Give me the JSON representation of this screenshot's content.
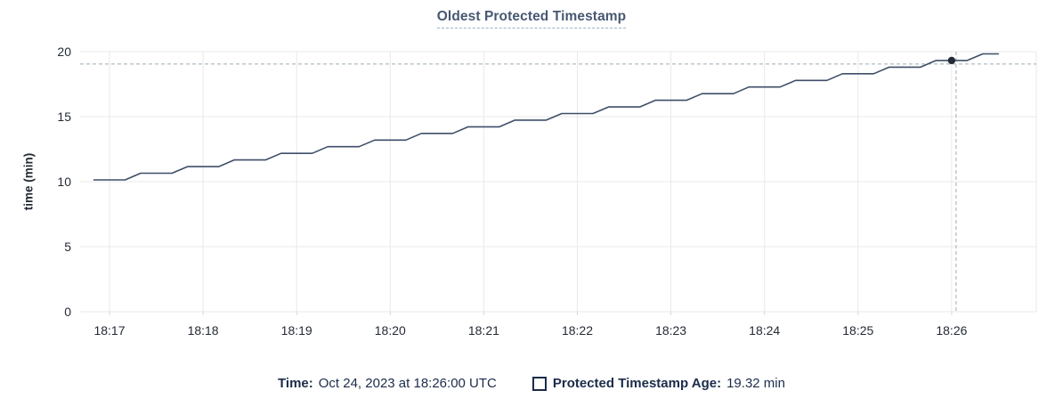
{
  "title": "Oldest Protected Timestamp",
  "tooltip": {
    "time_label": "Time:",
    "time_value": "Oct 24, 2023 at 18:26:00 UTC",
    "series_label": "Protected Timestamp Age:",
    "series_value": "19.32 min"
  },
  "colors": {
    "title": "#475872",
    "title_underline": "#9fb0c5",
    "axis_text": "#242a35",
    "legend_text": "#1c2c4a",
    "line": "#3f4e68",
    "point": "#242a35",
    "grid": "#e9e9e9",
    "tick": "#d8d8d8",
    "crosshair": "#9aacb6",
    "background": "#ffffff"
  },
  "chart_data": {
    "type": "line",
    "title": "Oldest Protected Timestamp",
    "xlabel": "",
    "ylabel": "time (min)",
    "ylim": [
      0,
      20
    ],
    "y_ticks": [
      0,
      5,
      10,
      15,
      20
    ],
    "x_ticks": [
      "18:17",
      "18:18",
      "18:19",
      "18:20",
      "18:21",
      "18:22",
      "18:23",
      "18:24",
      "18:25",
      "18:26"
    ],
    "x_tick_interval_sec": 60,
    "grid": true,
    "legend_position": "bottom",
    "hover": {
      "time": "18:26:00",
      "offset_sec": 540,
      "value": 19.32,
      "value_label": "19.32 min"
    },
    "series": [
      {
        "name": "Protected Timestamp Age",
        "unit": "min",
        "points": [
          [
            -10,
            10.14
          ],
          [
            0,
            10.14
          ],
          [
            10,
            10.14
          ],
          [
            20,
            10.65
          ],
          [
            30,
            10.65
          ],
          [
            40,
            10.65
          ],
          [
            50,
            11.16
          ],
          [
            60,
            11.16
          ],
          [
            70,
            11.16
          ],
          [
            80,
            11.67
          ],
          [
            90,
            11.67
          ],
          [
            100,
            11.67
          ],
          [
            110,
            12.18
          ],
          [
            120,
            12.18
          ],
          [
            130,
            12.18
          ],
          [
            140,
            12.69
          ],
          [
            150,
            12.69
          ],
          [
            160,
            12.69
          ],
          [
            170,
            13.2
          ],
          [
            180,
            13.2
          ],
          [
            190,
            13.2
          ],
          [
            200,
            13.71
          ],
          [
            210,
            13.71
          ],
          [
            220,
            13.71
          ],
          [
            230,
            14.22
          ],
          [
            240,
            14.22
          ],
          [
            250,
            14.22
          ],
          [
            260,
            14.73
          ],
          [
            270,
            14.73
          ],
          [
            280,
            14.73
          ],
          [
            290,
            15.24
          ],
          [
            300,
            15.24
          ],
          [
            310,
            15.24
          ],
          [
            320,
            15.75
          ],
          [
            330,
            15.75
          ],
          [
            340,
            15.75
          ],
          [
            350,
            16.26
          ],
          [
            360,
            16.26
          ],
          [
            370,
            16.26
          ],
          [
            380,
            16.77
          ],
          [
            390,
            16.77
          ],
          [
            400,
            16.77
          ],
          [
            410,
            17.28
          ],
          [
            420,
            17.28
          ],
          [
            430,
            17.28
          ],
          [
            440,
            17.79
          ],
          [
            450,
            17.79
          ],
          [
            460,
            17.79
          ],
          [
            470,
            18.3
          ],
          [
            480,
            18.3
          ],
          [
            490,
            18.3
          ],
          [
            500,
            18.81
          ],
          [
            510,
            18.81
          ],
          [
            520,
            18.81
          ],
          [
            530,
            19.32
          ],
          [
            540,
            19.32
          ],
          [
            550,
            19.32
          ],
          [
            560,
            19.83
          ],
          [
            570,
            19.83
          ]
        ]
      }
    ]
  }
}
